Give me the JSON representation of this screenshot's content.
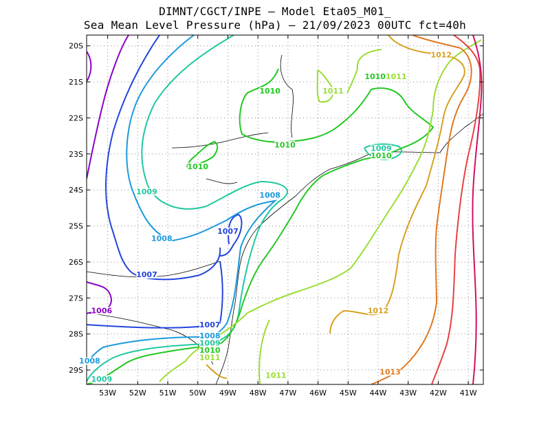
{
  "title_line1": "DIMNT/CGCT/INPE –  Model Eta05_M01_",
  "title_line2": "Sea Mean Level Pressure (hPa) – 21/09/2023 00UTC fct=40h",
  "chart_data": {
    "type": "contour",
    "title": "Sea Mean Level Pressure (hPa)",
    "x_ticks": [
      "53W",
      "52W",
      "51W",
      "50W",
      "49W",
      "48W",
      "47W",
      "46W",
      "45W",
      "44W",
      "43W",
      "42W",
      "41W"
    ],
    "y_ticks": [
      "20S",
      "21S",
      "22S",
      "23S",
      "24S",
      "25S",
      "26S",
      "27S",
      "28S",
      "29S"
    ],
    "xlim": [
      -53.7,
      -40.5
    ],
    "ylim": [
      -29.4,
      -19.7
    ],
    "grid": true,
    "contour_labels": [
      {
        "text": "1006",
        "lon": -53.2,
        "lat": -27.4,
        "color": "#8a00c8"
      },
      {
        "text": "1007",
        "lon": -51.7,
        "lat": -26.4,
        "color": "#2244dd"
      },
      {
        "text": "1007",
        "lon": -49.0,
        "lat": -25.2,
        "color": "#2244dd"
      },
      {
        "text": "1007",
        "lon": -49.6,
        "lat": -27.8,
        "color": "#2244dd"
      },
      {
        "text": "1008",
        "lon": -51.2,
        "lat": -25.4,
        "color": "#1a99dd"
      },
      {
        "text": "1008",
        "lon": -47.6,
        "lat": -24.2,
        "color": "#1a99dd"
      },
      {
        "text": "1008",
        "lon": -49.6,
        "lat": -28.1,
        "color": "#1a99dd"
      },
      {
        "text": "1008",
        "lon": -53.6,
        "lat": -28.8,
        "color": "#1a99dd"
      },
      {
        "text": "1009",
        "lon": -51.7,
        "lat": -24.1,
        "color": "#1fc8a0"
      },
      {
        "text": "1009",
        "lon": -43.9,
        "lat": -22.9,
        "color": "#1fc8a0"
      },
      {
        "text": "1009",
        "lon": -49.6,
        "lat": -28.3,
        "color": "#1fc8a0"
      },
      {
        "text": "1009",
        "lon": -53.2,
        "lat": -29.3,
        "color": "#1fc8a0"
      },
      {
        "text": "1010",
        "lon": -47.6,
        "lat": -21.3,
        "color": "#22c822"
      },
      {
        "text": "1010",
        "lon": -47.1,
        "lat": -22.8,
        "color": "#22c822"
      },
      {
        "text": "1010",
        "lon": -50.0,
        "lat": -23.4,
        "color": "#22c822"
      },
      {
        "text": "1010",
        "lon": -44.1,
        "lat": -20.9,
        "color": "#22c822"
      },
      {
        "text": "1010",
        "lon": -43.9,
        "lat": -23.1,
        "color": "#22c822"
      },
      {
        "text": "1010",
        "lon": -49.6,
        "lat": -28.5,
        "color": "#22c822"
      },
      {
        "text": "1011",
        "lon": -45.5,
        "lat": -21.3,
        "color": "#99dd33"
      },
      {
        "text": "1011",
        "lon": -43.4,
        "lat": -20.9,
        "color": "#99dd33"
      },
      {
        "text": "1011",
        "lon": -49.6,
        "lat": -28.7,
        "color": "#99dd33"
      },
      {
        "text": "1011",
        "lon": -47.4,
        "lat": -29.2,
        "color": "#99dd33"
      },
      {
        "text": "1012",
        "lon": -44.0,
        "lat": -27.4,
        "color": "#d8a020"
      },
      {
        "text": "1012",
        "lon": -41.9,
        "lat": -20.3,
        "color": "#d8a020"
      },
      {
        "text": "1013",
        "lon": -43.6,
        "lat": -29.1,
        "color": "#e07820"
      }
    ]
  },
  "colors": {
    "c1006": "#8a00c8",
    "c1007": "#2244dd",
    "c1008": "#1a99dd",
    "c1009": "#1fc8a0",
    "c1010": "#22c822",
    "c1011": "#99dd33",
    "c1012": "#d8a020",
    "c1013": "#e07820",
    "c1014": "#e84040",
    "c1015": "#d01060",
    "coast": "#000000",
    "grid": "#888888"
  }
}
